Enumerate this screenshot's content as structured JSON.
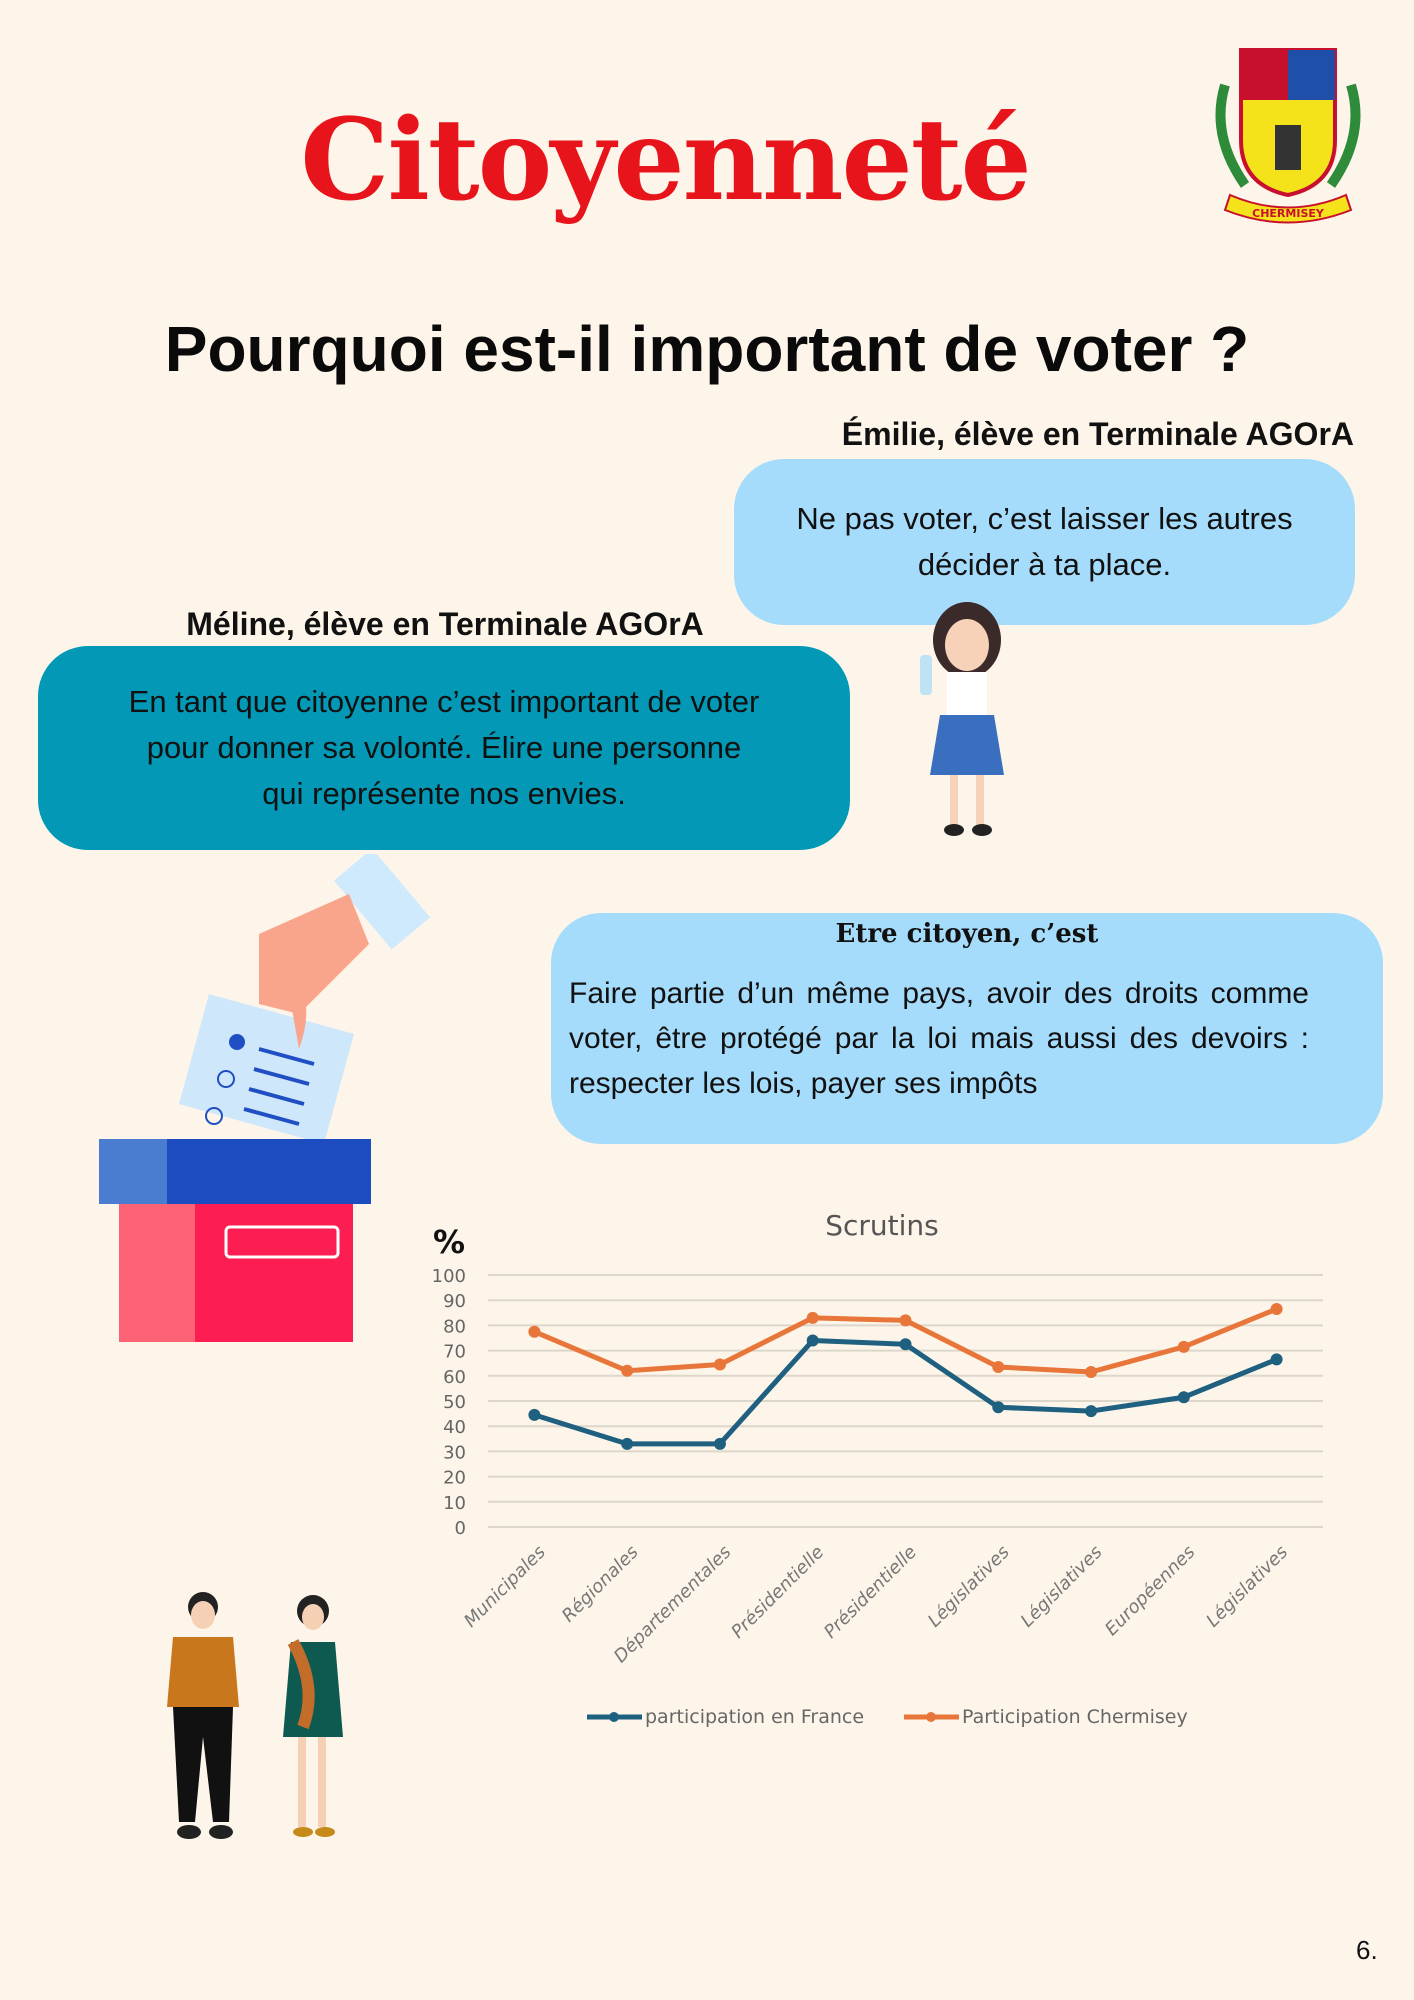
{
  "title": "Citoyenneté",
  "heading": "Pourquoi est-il important de voter ?",
  "logo": {
    "text": "CHERMISEY"
  },
  "quotes": [
    {
      "author": "Émilie, élève en Terminale AGOrA",
      "text": "Ne pas voter, c’est laisser les autres décider à ta place."
    },
    {
      "author": "Méline, élève en Terminale AGOrA",
      "text": "En tant que citoyenne c’est important de voter pour donner sa volonté. Élire une personne qui représente nos envies."
    }
  ],
  "citoyen": {
    "title": "Etre citoyen, c’est",
    "text": "Faire partie d’un même pays, avoir des droits comme voter, être protégé par la loi mais aussi des devoirs : respecter les lois, payer ses impôts"
  },
  "chart_data": {
    "type": "line",
    "title": "Scrutins",
    "ylabel": "%",
    "xlabel": "",
    "ylim": [
      0,
      100
    ],
    "yticks": [
      0,
      10,
      20,
      30,
      40,
      50,
      60,
      70,
      80,
      90,
      100
    ],
    "grid": true,
    "legend": "bottom",
    "categories": [
      "Municipales",
      "Régionales",
      "Départementales",
      "Présidentielle",
      "Présidentielle",
      "Législatives",
      "Législatives",
      "Européennes",
      "Législatives"
    ],
    "series": [
      {
        "name": "participation en France",
        "color": "#1f5f80",
        "values": [
          44.5,
          33,
          33,
          74,
          72.5,
          47.5,
          46,
          51.5,
          66.5
        ]
      },
      {
        "name": "Participation Chermisey",
        "color": "#e8763a",
        "values": [
          77.5,
          62,
          64.5,
          83,
          82,
          63.5,
          61.5,
          71.5,
          86.5
        ]
      }
    ]
  },
  "page_number": "6."
}
